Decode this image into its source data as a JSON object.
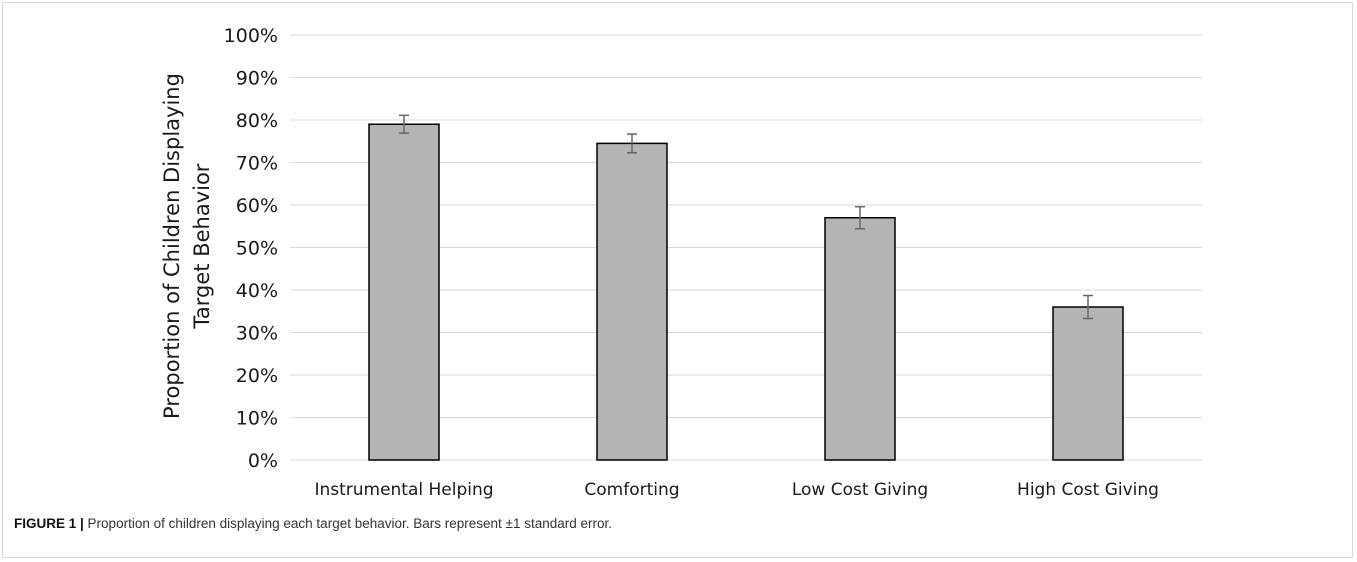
{
  "chart_data": {
    "type": "bar",
    "categories": [
      "Instrumental Helping",
      "Comforting",
      "Low Cost Giving",
      "High Cost Giving"
    ],
    "values": [
      0.79,
      0.745,
      0.57,
      0.36
    ],
    "errors": [
      0.021,
      0.022,
      0.026,
      0.027
    ],
    "ylim": [
      0,
      1.0
    ],
    "yticks": [
      0,
      0.1,
      0.2,
      0.3,
      0.4,
      0.5,
      0.6,
      0.7,
      0.8,
      0.9,
      1.0
    ],
    "ytick_labels": [
      "0%",
      "10%",
      "20%",
      "30%",
      "40%",
      "50%",
      "60%",
      "70%",
      "80%",
      "90%",
      "100%"
    ],
    "ylabel_line1": "Proportion of Children Displaying",
    "ylabel_line2": "Target Behavior",
    "grid": true,
    "colors": {
      "bar": "#b4b4b4",
      "bar_edge": "#000000",
      "error": "#666666",
      "grid": "#d9d9d9"
    }
  },
  "caption": {
    "label": "FIGURE 1 |",
    "text": " Proportion of children displaying each target behavior. Bars represent ±1 standard error."
  }
}
